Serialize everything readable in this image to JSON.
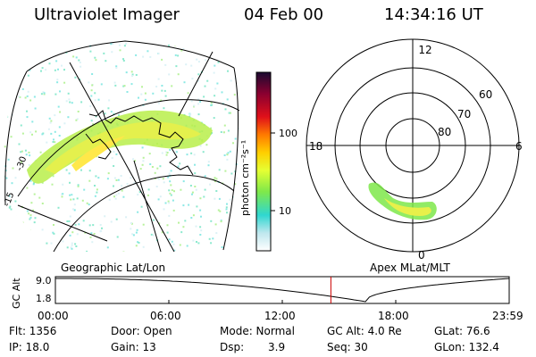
{
  "header": {
    "title": "Ultraviolet Imager",
    "date": "04 Feb 00",
    "time": "14:34:16 UT"
  },
  "left_panel": {
    "caption": "Geographic Lat/Lon",
    "markers": [
      "-15",
      "-30"
    ]
  },
  "colorbar": {
    "unit_label": "photon cm⁻²s⁻¹",
    "ticks": [
      "100",
      "10"
    ],
    "colors": [
      "#2a0a3a",
      "#c0001a",
      "#ff7a00",
      "#ffc800",
      "#d6ff33",
      "#7ee84a",
      "#2fd7d0",
      "#bfe7ee",
      "#ffffff"
    ]
  },
  "polar_plot": {
    "caption": "Apex MLat/MLT",
    "mlt_labels": {
      "top": "12",
      "left": "18",
      "right": "6",
      "bottom": "0"
    },
    "lat_labels": [
      "60",
      "70",
      "80"
    ]
  },
  "altitude_plot": {
    "ylabel": "GC Alt",
    "ymax": "9.0",
    "ymin": "1.8",
    "xticks": [
      "00:00",
      "06:00",
      "12:00",
      "18:00",
      "23:59"
    ],
    "current_time_hours": 14.57,
    "min_time_hours": 16.4,
    "marker_color": "#cc0000"
  },
  "status": {
    "flt": "Flt: 1356",
    "ip": "IP: 18.0",
    "door": "Door: Open",
    "gain": "Gain: 13",
    "mode": "Mode: Normal",
    "dsp_label": "Dsp:",
    "dsp_value": "3.9",
    "gcalt": "GC Alt: 4.0 Re",
    "seq": "Seq: 30",
    "glat": "GLat:  76.6",
    "glon": "GLon: 132.4"
  }
}
